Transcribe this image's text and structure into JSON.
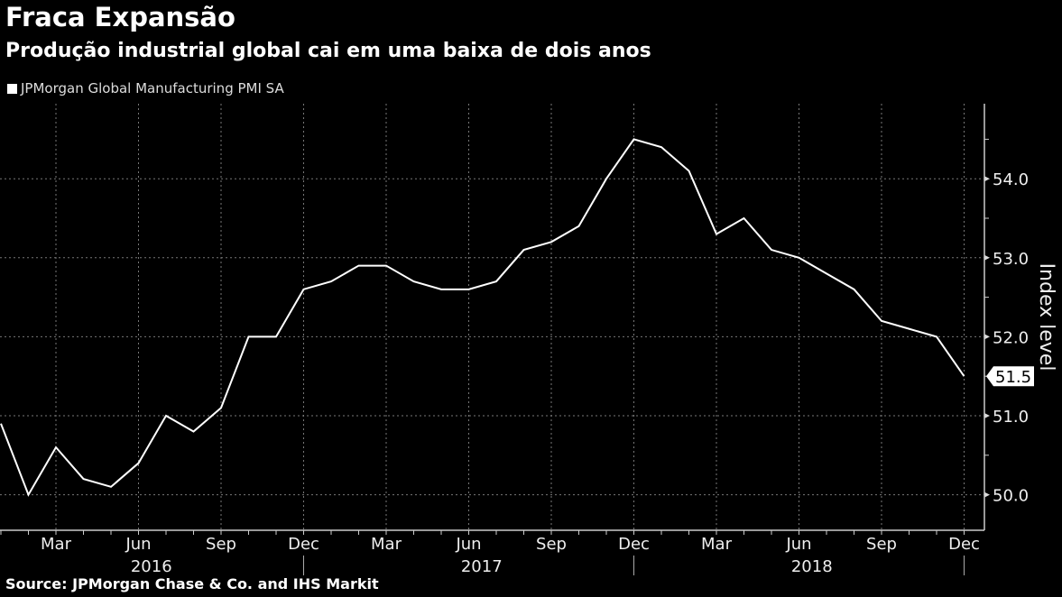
{
  "title": "Fraca Expansão",
  "subtitle": "Produção industrial global cai em uma baixa de dois anos",
  "source": "Source: JPMorgan Chase & Co. and IHS Markit",
  "chart_data": {
    "type": "line",
    "series": [
      {
        "name": "JPMorgan Global Manufacturing PMI SA",
        "color": "#ffffff",
        "x": [
          "2016-01",
          "2016-02",
          "2016-03",
          "2016-04",
          "2016-05",
          "2016-06",
          "2016-07",
          "2016-08",
          "2016-09",
          "2016-10",
          "2016-11",
          "2016-12",
          "2017-01",
          "2017-02",
          "2017-03",
          "2017-04",
          "2017-05",
          "2017-06",
          "2017-07",
          "2017-08",
          "2017-09",
          "2017-10",
          "2017-11",
          "2017-12",
          "2018-01",
          "2018-02",
          "2018-03",
          "2018-04",
          "2018-05",
          "2018-06",
          "2018-07",
          "2018-08",
          "2018-09",
          "2018-10",
          "2018-11",
          "2018-12"
        ],
        "values": [
          50.9,
          50.0,
          50.6,
          50.2,
          50.1,
          50.4,
          51.0,
          50.8,
          51.1,
          52.0,
          52.0,
          52.6,
          52.7,
          52.9,
          52.9,
          52.7,
          52.6,
          52.6,
          52.7,
          53.1,
          53.2,
          53.4,
          54.0,
          54.5,
          54.4,
          54.1,
          53.3,
          53.5,
          53.1,
          53.0,
          52.8,
          52.6,
          52.2,
          52.1,
          52.0,
          51.5
        ]
      }
    ],
    "last_value_label": "51.5",
    "ylabel": "Index level",
    "ylim": [
      49.55,
      54.95
    ],
    "yticks": [
      "50.0",
      "51.0",
      "52.0",
      "53.0",
      "54.0"
    ],
    "xtick_labels": [
      {
        "month": "2016-03",
        "label": "Mar"
      },
      {
        "month": "2016-06",
        "label": "Jun"
      },
      {
        "month": "2016-09",
        "label": "Sep"
      },
      {
        "month": "2016-12",
        "label": "Dec"
      },
      {
        "month": "2017-03",
        "label": "Mar"
      },
      {
        "month": "2017-06",
        "label": "Jun"
      },
      {
        "month": "2017-09",
        "label": "Sep"
      },
      {
        "month": "2017-12",
        "label": "Dec"
      },
      {
        "month": "2018-03",
        "label": "Mar"
      },
      {
        "month": "2018-06",
        "label": "Jun"
      },
      {
        "month": "2018-09",
        "label": "Sep"
      },
      {
        "month": "2018-12",
        "label": "Dec"
      }
    ],
    "years": [
      "2016",
      "2017",
      "2018"
    ],
    "grid": true,
    "legend_position": "top-left",
    "y_axis_side": "right"
  }
}
